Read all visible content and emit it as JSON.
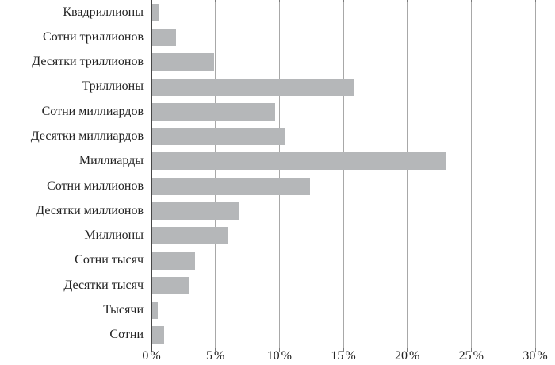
{
  "chart_data": {
    "type": "bar",
    "orientation": "horizontal",
    "title": "",
    "xlabel": "",
    "ylabel": "",
    "categories": [
      "Квадриллионы",
      "Сотни триллионов",
      "Десятки триллионов",
      "Триллионы",
      "Сотни миллиардов",
      "Десятки миллиардов",
      "Миллиарды",
      "Сотни миллионов",
      "Десятки миллионов",
      "Миллионы",
      "Сотни тысяч",
      "Десятки тысяч",
      "Тысячи",
      "Сотни"
    ],
    "values": [
      0.6,
      1.9,
      4.9,
      15.8,
      9.7,
      10.5,
      23.0,
      12.4,
      6.9,
      6.0,
      3.4,
      3.0,
      0.5,
      1.0
    ],
    "value_unit": "%",
    "xlim": [
      0,
      30
    ],
    "x_ticks": [
      0,
      5,
      10,
      15,
      20,
      25,
      30
    ],
    "x_tick_labels": [
      "0 %",
      "5 %",
      "10 %",
      "15 %",
      "20 %",
      "25 %",
      "30 %"
    ],
    "grid": "vertical-only",
    "legend": "none"
  },
  "colors": {
    "bar": "#b5b7b9",
    "gridline": "#a8a8a8",
    "axis_line": "#474747",
    "tick": "#7a7a7a",
    "text": "#222222",
    "background": "#ffffff"
  }
}
